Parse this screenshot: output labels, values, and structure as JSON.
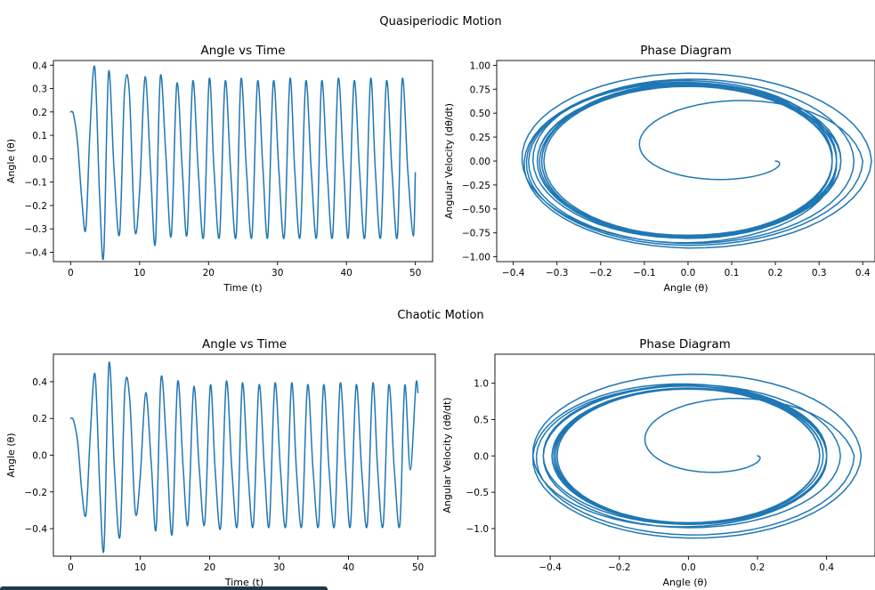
{
  "figure": {
    "sections": [
      {
        "title": "Quasiperiodic Motion"
      },
      {
        "title": "Chaotic Motion"
      }
    ]
  },
  "colors": {
    "series": "#1f77b4",
    "axes": "#000000",
    "background": "#ffffff"
  },
  "chart_data": [
    {
      "type": "line",
      "section": "Quasiperiodic Motion",
      "title": "Angle vs Time",
      "xlabel": "Time (t)",
      "ylabel": "Angle (θ)",
      "xlim": [
        -2.5,
        52.5
      ],
      "ylim": [
        -0.44,
        0.42
      ],
      "xticks": [
        0,
        10,
        20,
        30,
        40,
        50
      ],
      "xtick_labels": [
        "0",
        "10",
        "20",
        "30",
        "40",
        "50"
      ],
      "yticks": [
        -0.4,
        -0.3,
        -0.2,
        -0.1,
        0.0,
        0.1,
        0.2,
        0.3,
        0.4
      ],
      "ytick_labels": [
        "−0.4",
        "−0.3",
        "−0.2",
        "−0.1",
        "0.0",
        "0.1",
        "0.2",
        "0.3",
        "0.4"
      ],
      "grid": false,
      "series": [
        {
          "x": [
            0,
            0.4,
            1.0,
            1.6,
            2.2,
            2.8,
            3.5,
            4.2,
            4.8,
            5.5,
            6.3,
            7.1,
            7.8,
            8.5,
            9.3,
            10.0,
            10.8,
            11.6,
            12.3,
            13.0,
            13.8,
            14.6,
            15.4,
            16.2,
            16.9,
            17.7,
            18.5,
            19.3,
            20.1,
            20.8,
            21.6,
            22.4,
            23.2,
            24.0,
            24.7,
            25.5,
            26.3,
            27.1,
            27.9,
            28.6,
            29.4,
            30.2,
            31.0,
            31.8,
            32.5,
            33.3,
            34.1,
            34.9,
            35.7,
            36.4,
            37.2,
            38.0,
            38.8,
            39.6,
            40.3,
            41.1,
            41.9,
            42.7,
            43.5,
            44.2,
            45.0,
            45.8,
            46.6,
            47.4,
            48.1,
            48.9,
            49.7,
            50.0
          ],
          "y": [
            0.2,
            0.19,
            0.07,
            -0.17,
            -0.3,
            0.12,
            0.39,
            -0.16,
            -0.41,
            0.37,
            -0.05,
            -0.32,
            0.28,
            0.29,
            -0.3,
            -0.14,
            0.35,
            -0.05,
            -0.36,
            0.35,
            0.02,
            -0.33,
            0.32,
            -0.05,
            -0.32,
            0.33,
            -0.05,
            -0.33,
            0.34,
            -0.05,
            -0.33,
            0.33,
            -0.05,
            -0.33,
            0.34,
            -0.05,
            -0.33,
            0.33,
            -0.05,
            -0.33,
            0.33,
            -0.05,
            -0.33,
            0.34,
            -0.05,
            -0.33,
            0.33,
            -0.05,
            -0.33,
            0.33,
            -0.05,
            -0.33,
            0.34,
            -0.05,
            -0.33,
            0.33,
            -0.05,
            -0.33,
            0.34,
            -0.05,
            -0.33,
            0.33,
            -0.05,
            -0.33,
            0.34,
            -0.05,
            -0.33,
            -0.06
          ]
        }
      ]
    },
    {
      "type": "line",
      "section": "Quasiperiodic Motion",
      "title": "Phase Diagram",
      "xlabel": "Angle (θ)",
      "ylabel": "Angular Velocity (dθ/dt)",
      "xlim": [
        -0.438,
        0.428
      ],
      "ylim": [
        -1.05,
        1.05
      ],
      "xticks": [
        -0.4,
        -0.3,
        -0.2,
        -0.1,
        0.0,
        0.1,
        0.2,
        0.3,
        0.4
      ],
      "xtick_labels": [
        "−0.4",
        "−0.3",
        "−0.2",
        "−0.1",
        "0.0",
        "0.1",
        "0.2",
        "0.3",
        "0.4"
      ],
      "yticks": [
        -1.0,
        -0.75,
        -0.5,
        -0.25,
        0.0,
        0.25,
        0.5,
        0.75,
        1.0
      ],
      "ytick_labels": [
        "−1.00",
        "−0.75",
        "−0.50",
        "−0.25",
        "0.00",
        "0.25",
        "0.50",
        "0.75",
        "1.00"
      ],
      "grid": false,
      "spiral": {
        "start": [
          0.2,
          0.0
        ],
        "center": [
          0.0,
          0.0
        ],
        "amp_x": [
          0.36,
          0.4,
          0.34,
          0.42,
          0.33,
          0.38,
          0.35,
          0.34,
          0.33,
          0.34,
          0.35,
          0.33,
          0.34,
          0.33
        ],
        "amp_y": [
          0.55,
          0.9,
          0.82,
          0.95,
          0.78,
          0.88,
          0.8,
          0.78,
          0.8,
          0.82,
          0.77,
          0.79,
          0.81,
          0.78
        ]
      }
    },
    {
      "type": "line",
      "section": "Chaotic Motion",
      "title": "Angle vs Time",
      "xlabel": "Time (t)",
      "ylabel": "Angle (θ)",
      "xlim": [
        -2.5,
        52.5
      ],
      "ylim": [
        -0.55,
        0.55
      ],
      "xticks": [
        0,
        10,
        20,
        30,
        40,
        50
      ],
      "xtick_labels": [
        "0",
        "10",
        "20",
        "30",
        "40",
        "50"
      ],
      "yticks": [
        -0.4,
        -0.2,
        0.0,
        0.2,
        0.4
      ],
      "ytick_labels": [
        "−0.4",
        "−0.2",
        "0.0",
        "0.2",
        "0.4"
      ],
      "grid": false,
      "series": [
        {
          "x": [
            0,
            0.4,
            1.0,
            1.6,
            2.2,
            2.8,
            3.5,
            4.2,
            4.8,
            5.5,
            6.3,
            7.1,
            7.8,
            8.5,
            9.3,
            10.0,
            10.8,
            11.6,
            12.3,
            13.0,
            13.8,
            14.6,
            15.4,
            16.2,
            16.9,
            17.7,
            18.5,
            19.3,
            20.1,
            20.8,
            21.6,
            22.4,
            23.2,
            24.0,
            24.7,
            25.5,
            26.3,
            27.1,
            27.9,
            28.6,
            29.4,
            30.2,
            31.0,
            31.8,
            32.5,
            33.3,
            34.1,
            34.9,
            35.7,
            36.4,
            37.2,
            38.0,
            38.8,
            39.6,
            40.3,
            41.1,
            41.9,
            42.7,
            43.5,
            44.2,
            45.0,
            45.8,
            46.6,
            47.4,
            48.1,
            48.9,
            49.7,
            50.0
          ],
          "y": [
            0.2,
            0.19,
            0.07,
            -0.2,
            -0.32,
            0.1,
            0.44,
            -0.2,
            -0.5,
            0.5,
            -0.08,
            -0.44,
            0.36,
            0.3,
            -0.31,
            -0.12,
            0.34,
            -0.05,
            -0.4,
            0.42,
            0.05,
            -0.43,
            0.4,
            -0.08,
            -0.37,
            0.37,
            -0.07,
            -0.37,
            0.38,
            -0.08,
            -0.39,
            0.4,
            -0.08,
            -0.38,
            0.39,
            -0.08,
            -0.38,
            0.38,
            -0.08,
            -0.38,
            0.39,
            -0.08,
            -0.38,
            0.39,
            -0.08,
            -0.38,
            0.38,
            -0.08,
            -0.38,
            0.38,
            -0.08,
            -0.38,
            0.39,
            -0.08,
            -0.38,
            0.38,
            -0.08,
            -0.38,
            0.39,
            -0.08,
            -0.38,
            0.38,
            -0.08,
            -0.38,
            0.38,
            -0.08,
            0.38,
            0.34
          ]
        }
      ]
    },
    {
      "type": "line",
      "section": "Chaotic Motion",
      "title": "Phase Diagram",
      "xlabel": "Angle (θ)",
      "ylabel": "Angular Velocity (dθ/dt)",
      "xlim": [
        -0.56,
        0.54
      ],
      "ylim": [
        -1.38,
        1.4
      ],
      "xticks": [
        -0.4,
        -0.2,
        0.0,
        0.2,
        0.4
      ],
      "xtick_labels": [
        "−0.4",
        "−0.2",
        "0.0",
        "0.2",
        "0.4"
      ],
      "yticks": [
        -1.0,
        -0.5,
        0.0,
        0.5,
        1.0
      ],
      "ytick_labels": [
        "−1.0",
        "−0.5",
        "0.0",
        "0.5",
        "1.0"
      ],
      "grid": false,
      "spiral": {
        "start": [
          0.2,
          0.0
        ],
        "center": [
          0.0,
          0.0
        ],
        "amp_x": [
          0.32,
          0.48,
          0.4,
          0.5,
          0.4,
          0.44,
          0.4,
          0.38,
          0.38,
          0.4,
          0.39,
          0.38,
          0.39,
          0.38
        ],
        "amp_y": [
          0.6,
          1.15,
          0.9,
          1.2,
          0.92,
          1.0,
          0.95,
          0.92,
          0.92,
          0.94,
          0.93,
          0.92,
          0.93,
          0.92
        ]
      }
    }
  ]
}
